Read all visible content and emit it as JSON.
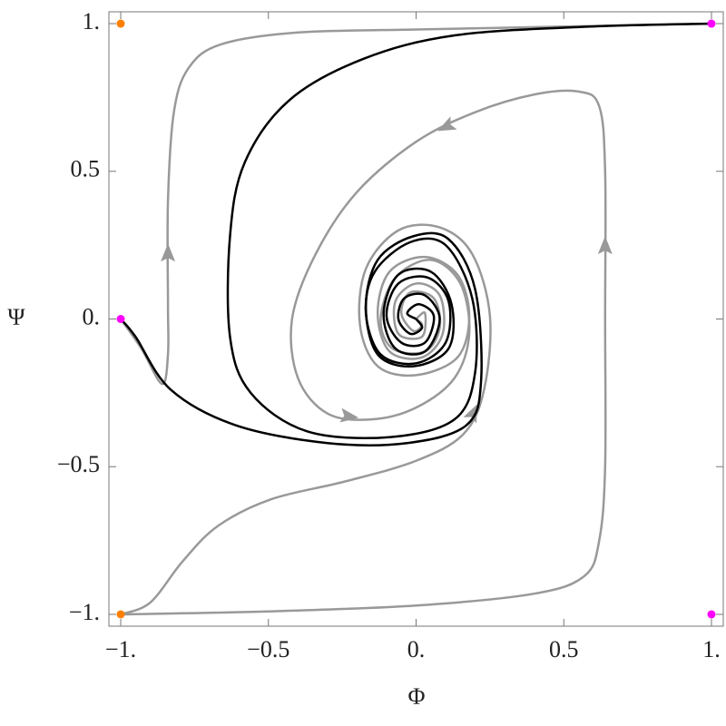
{
  "chart_data": {
    "type": "line",
    "xlabel": "Φ",
    "ylabel": "Ψ",
    "xlim": [
      -1.04,
      1.04
    ],
    "ylim": [
      -1.04,
      1.04
    ],
    "xticks": [
      {
        "value": -1,
        "label": "−1."
      },
      {
        "value": -0.5,
        "label": "−0.5"
      },
      {
        "value": 0,
        "label": "0."
      },
      0.5,
      {
        "value": 1,
        "label": "1."
      }
    ],
    "yticks": [
      {
        "value": -1,
        "label": "−1."
      },
      {
        "value": -0.5,
        "label": "−0.5"
      },
      {
        "value": 0,
        "label": "0."
      },
      0.5,
      {
        "value": 1,
        "label": "1."
      }
    ],
    "series": [
      {
        "color": "#999999",
        "x": [
          -1,
          -0.93,
          -0.86,
          -0.84,
          -0.84,
          -0.84,
          -0.82,
          -0.77,
          -0.66,
          -0.4,
          0,
          0.5,
          1
        ],
        "y": [
          0,
          -0.1,
          -0.22,
          -0.12,
          0.05,
          0.4,
          0.7,
          0.85,
          0.93,
          0.97,
          0.98,
          0.99,
          1
        ]
      },
      {
        "color": "#999999",
        "x": [
          -1,
          -0.9,
          -0.79,
          -0.67,
          -0.49,
          -0.24,
          0,
          0.16,
          0.23,
          0.25,
          0.19,
          0.08,
          -0.06,
          -0.17,
          -0.19,
          -0.13,
          0,
          0.14,
          0.18,
          0.14,
          0.03,
          -0.09,
          -0.13,
          -0.09,
          0.02,
          0.09,
          0.08,
          0,
          -0.07,
          -0.06,
          0.02,
          0.03,
          0
        ],
        "y": [
          -1,
          -0.96,
          -0.82,
          -0.7,
          -0.61,
          -0.55,
          -0.48,
          -0.39,
          -0.24,
          0.01,
          0.22,
          0.31,
          0.3,
          0.17,
          -0.02,
          -0.16,
          -0.19,
          -0.13,
          0.01,
          0.15,
          0.21,
          0.16,
          0.02,
          -0.11,
          -0.13,
          -0.05,
          0.08,
          0.12,
          0.06,
          -0.05,
          -0.06,
          0.02,
          0
        ]
      },
      {
        "color": "#999999",
        "x": [
          -1,
          -0.5,
          0,
          0.4,
          0.57,
          0.62,
          0.64,
          0.64,
          0.64,
          0.62,
          0.55,
          0.4,
          0.2,
          0,
          -0.2,
          -0.34,
          -0.42,
          -0.4,
          -0.3,
          -0.15,
          0,
          0.13,
          0.18,
          0.15,
          0.05,
          -0.07,
          -0.12,
          -0.08,
          0.03,
          0.08,
          0.06,
          -0.02,
          -0.05,
          -0.01,
          0.02,
          0
        ],
        "y": [
          -1,
          -0.99,
          -0.97,
          -0.93,
          -0.87,
          -0.75,
          -0.5,
          0,
          0.5,
          0.72,
          0.77,
          0.76,
          0.7,
          0.6,
          0.43,
          0.22,
          0,
          -0.2,
          -0.32,
          -0.34,
          -0.3,
          -0.2,
          -0.05,
          0.12,
          0.2,
          0.14,
          0,
          -0.1,
          -0.11,
          -0.03,
          0.07,
          0.09,
          0.02,
          -0.04,
          -0.02,
          0
        ]
      },
      {
        "color": "#000000",
        "x": [
          -1,
          -0.95,
          -0.83,
          -0.61,
          -0.3,
          -0.03,
          0.17,
          0.22,
          0.2,
          0.11,
          -0.01,
          -0.13,
          -0.17,
          -0.13,
          -0.01,
          0.11,
          0.12,
          0.05,
          -0.06,
          -0.11,
          -0.07,
          0.03,
          0.08,
          0.03,
          -0.04,
          -0.06,
          -0.02,
          0.02,
          0
        ],
        "y": [
          0,
          -0.06,
          -0.24,
          -0.36,
          -0.42,
          -0.42,
          -0.36,
          -0.21,
          0.1,
          0.27,
          0.28,
          0.2,
          0.04,
          -0.12,
          -0.16,
          -0.1,
          0.05,
          0.16,
          0.15,
          0.02,
          -0.1,
          -0.11,
          0,
          0.08,
          0.07,
          0,
          -0.05,
          -0.03,
          0
        ]
      },
      {
        "color": "#000000",
        "x": [
          1,
          0.59,
          0.13,
          -0.18,
          -0.43,
          -0.58,
          -0.63,
          -0.63,
          -0.56,
          -0.37,
          -0.09,
          0.13,
          0.2,
          0.19,
          0.1,
          -0.02,
          -0.14,
          -0.17,
          -0.12,
          0,
          0.1,
          0.11,
          0.04,
          -0.06,
          -0.1,
          -0.05,
          0.03,
          0.06,
          0.01,
          -0.03,
          0
        ],
        "y": [
          1,
          0.99,
          0.96,
          0.88,
          0.74,
          0.53,
          0.28,
          -0.06,
          -0.25,
          -0.38,
          -0.4,
          -0.34,
          -0.18,
          0.07,
          0.25,
          0.26,
          0.16,
          0.02,
          -0.12,
          -0.15,
          -0.08,
          0.06,
          0.14,
          0.12,
          0.01,
          -0.08,
          -0.08,
          0.01,
          0.05,
          0.02,
          0
        ]
      }
    ],
    "points": [
      {
        "x": -1,
        "y": 1,
        "color": "#ff8000"
      },
      {
        "x": -1,
        "y": -1,
        "color": "#ff8000"
      },
      {
        "x": -1,
        "y": 0,
        "color": "#ff00ff"
      },
      {
        "x": 1,
        "y": 1,
        "color": "#ff00ff"
      },
      {
        "x": 1,
        "y": -1,
        "color": "#ff00ff"
      }
    ]
  }
}
